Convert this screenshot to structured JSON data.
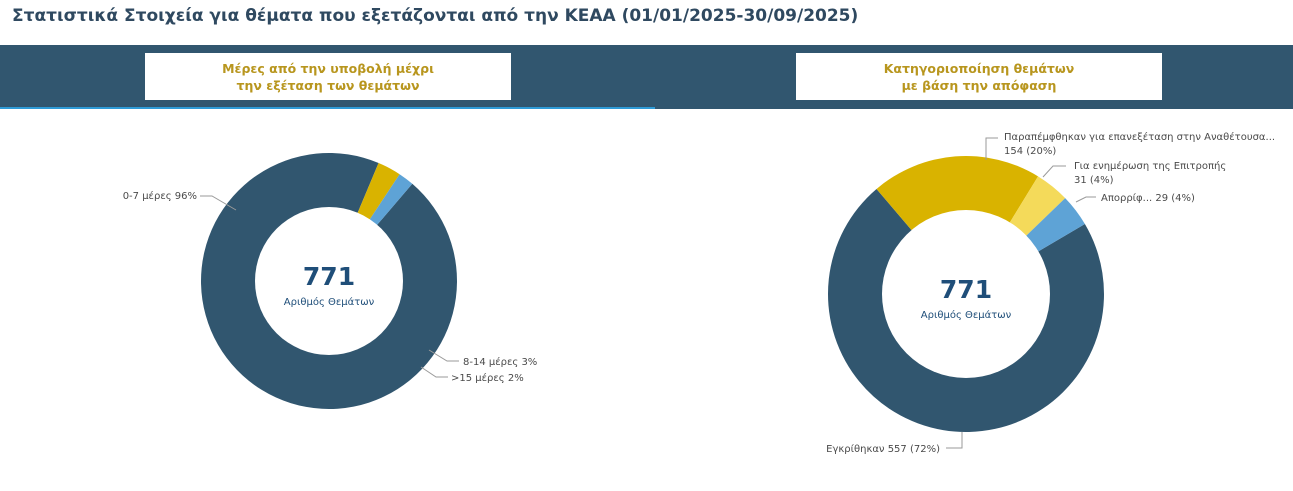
{
  "page_title": "Στατιστικά Στοιχεία για θέματα που εξετάζονται από την ΚΕΑΑ (01/01/2025-30/09/2025)",
  "left_header": {
    "line1": "Μέρες από την υποβολή μέχρι",
    "line2": "την εξέταση των θεμάτων"
  },
  "right_header": {
    "line1": "Κατηγοριοποίηση θεμάτων",
    "line2": "με βάση την απόφαση"
  },
  "chart_data": [
    {
      "type": "pie",
      "donut": true,
      "center_value": "771",
      "center_label": "Αριθμός Θεμάτων",
      "slices": [
        {
          "value": 96,
          "color": "#31566f",
          "label": "0-7 μέρες 96%"
        },
        {
          "value": 3,
          "color": "#d9b300",
          "label": "8-14 μέρες 3%"
        },
        {
          "value": 2,
          "color": "#5ea3d6",
          "label": ">15 μέρες 2%"
        }
      ]
    },
    {
      "type": "pie",
      "donut": true,
      "center_value": "771",
      "center_label": "Αριθμός Θεμάτων",
      "slices": [
        {
          "value": 557,
          "color": "#31566f",
          "label": "Εγκρίθηκαν 557 (72%)"
        },
        {
          "value": 154,
          "color": "#d9b300",
          "label": "Παραπέμφθηκαν για επανεξέταση στην Αναθέτουσα...",
          "label2": "154 (20%)"
        },
        {
          "value": 31,
          "color": "#f4da5a",
          "label": "Για ενημέρωση της Επιτροπής",
          "label2": "31 (4%)"
        },
        {
          "value": 29,
          "color": "#5ea3d6",
          "label": "Απορρίφ... 29 (4%)"
        }
      ]
    }
  ]
}
